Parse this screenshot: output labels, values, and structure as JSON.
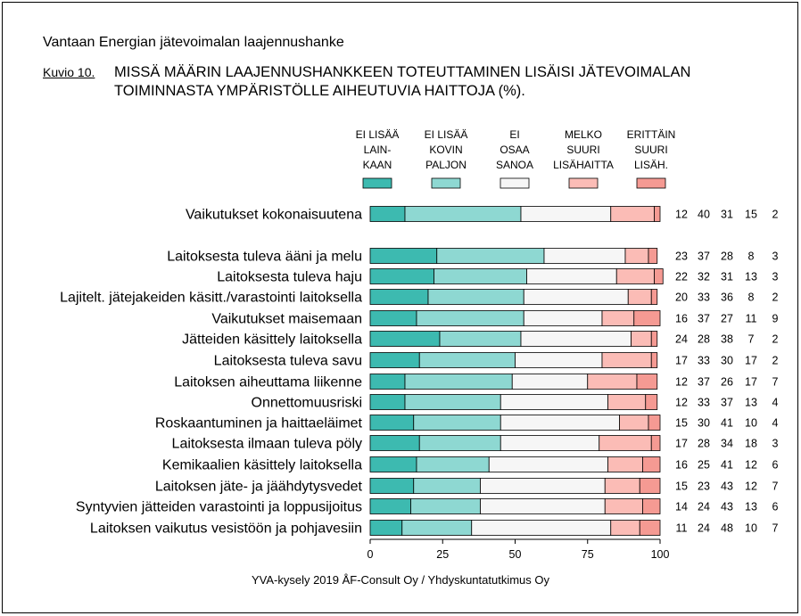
{
  "header": {
    "project_title": "Vantaan Energian jätevoimalan laajennushanke",
    "figure_label": "Kuvio 10.",
    "figure_question": "MISSÄ MÄÄRIN LAAJENNUSHANKKEEN TOTEUTTAMINEN LISÄISI JÄTEVOIMALAN TOIMINNASTA YMPÄRISTÖLLE AIHEUTUVIA HAITTOJA (%)."
  },
  "source_note": "YVA-kysely 2019 ÅF-Consult Oy / Yhdyskuntatutkimus Oy",
  "chart_data": {
    "type": "bar",
    "orientation": "horizontal",
    "stacked": true,
    "xlim": [
      0,
      100
    ],
    "xticks": [
      "0",
      "25",
      "50",
      "75",
      "100"
    ],
    "legend_placement": "top",
    "series": [
      {
        "name": [
          "EI LISÄÄ",
          "LAIN-",
          "KAAN"
        ],
        "color": "#3dbab0"
      },
      {
        "name": [
          "EI LISÄÄ",
          "KOVIN",
          "PALJON"
        ],
        "color": "#8ed8d2"
      },
      {
        "name": [
          "EI",
          "OSAA",
          "SANOA"
        ],
        "color": "#f6f6f6"
      },
      {
        "name": [
          "MELKO",
          "SUURI",
          "LISÄHAITTA"
        ],
        "color": "#fbbcb6"
      },
      {
        "name": [
          "ERITTÄIN",
          "SUURI",
          "LISÄH."
        ],
        "color": "#f59a93"
      }
    ],
    "categories": [
      "Vaikutukset kokonaisuutena",
      "Laitoksesta tuleva ääni ja melu",
      "Laitoksesta tuleva haju",
      "Lajitelt. jätejakeiden käsitt./varastointi laitoksella",
      "Vaikutukset maisemaan",
      "Jätteiden käsittely laitoksella",
      "Laitoksesta tuleva savu",
      "Laitoksen aiheuttama liikenne",
      "Onnettomuusriski",
      "Roskaantuminen ja haittaeläimet",
      "Laitoksesta ilmaan tuleva pöly",
      "Kemikaalien käsittely laitoksella",
      "Laitoksen jäte- ja jäähdytysvedet",
      "Syntyvien jätteiden varastointi ja loppusijoitus",
      "Laitoksen vaikutus vesistöön ja pohjavesiin"
    ],
    "values": [
      [
        12,
        40,
        31,
        15,
        2
      ],
      [
        23,
        37,
        28,
        8,
        3
      ],
      [
        22,
        32,
        31,
        13,
        3
      ],
      [
        20,
        33,
        36,
        8,
        2
      ],
      [
        16,
        37,
        27,
        11,
        9
      ],
      [
        24,
        28,
        38,
        7,
        2
      ],
      [
        17,
        33,
        30,
        17,
        2
      ],
      [
        12,
        37,
        26,
        17,
        7
      ],
      [
        12,
        33,
        37,
        13,
        4
      ],
      [
        15,
        30,
        41,
        10,
        4
      ],
      [
        17,
        28,
        34,
        18,
        3
      ],
      [
        16,
        25,
        41,
        12,
        6
      ],
      [
        15,
        23,
        43,
        12,
        7
      ],
      [
        14,
        24,
        43,
        13,
        6
      ],
      [
        11,
        24,
        48,
        10,
        7
      ]
    ]
  }
}
